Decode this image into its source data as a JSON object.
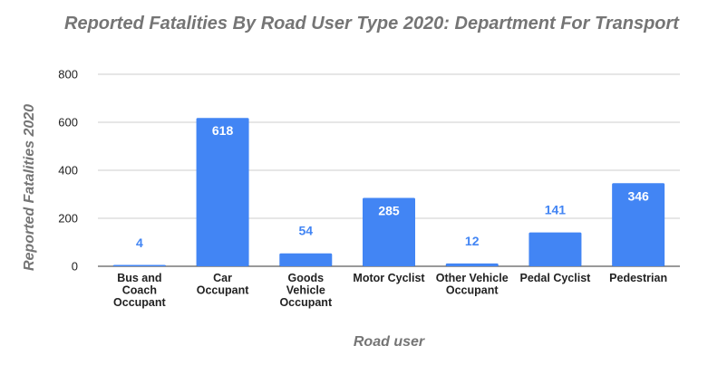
{
  "chart_data": {
    "type": "bar",
    "title": "Reported Fatalities By Road User Type 2020: Department For Transport",
    "xlabel": "Road user",
    "ylabel": "Reported Fatalities 2020",
    "categories": [
      "Bus and Coach Occupant",
      "Car Occupant",
      "Goods Vehicle Occupant",
      "Motor Cyclist",
      "Other Vehicle Occupant",
      "Pedal Cyclist",
      "Pedestrian"
    ],
    "category_lines": [
      [
        "Bus and",
        "Coach",
        "Occupant"
      ],
      [
        "Car",
        "Occupant"
      ],
      [
        "Goods",
        "Vehicle",
        "Occupant"
      ],
      [
        "Motor Cyclist"
      ],
      [
        "Other Vehicle",
        "Occupant"
      ],
      [
        "Pedal Cyclist"
      ],
      [
        "Pedestrian"
      ]
    ],
    "values": [
      4,
      618,
      54,
      285,
      12,
      141,
      346
    ],
    "ylim": [
      0,
      800
    ],
    "yticks": [
      0,
      200,
      400,
      600,
      800
    ],
    "grid": true,
    "legend": "none",
    "colors": {
      "bar": "#4285f4",
      "label_inside": "#ffffff",
      "label_outside": "#4285f4",
      "grid": "#cccccc"
    }
  }
}
